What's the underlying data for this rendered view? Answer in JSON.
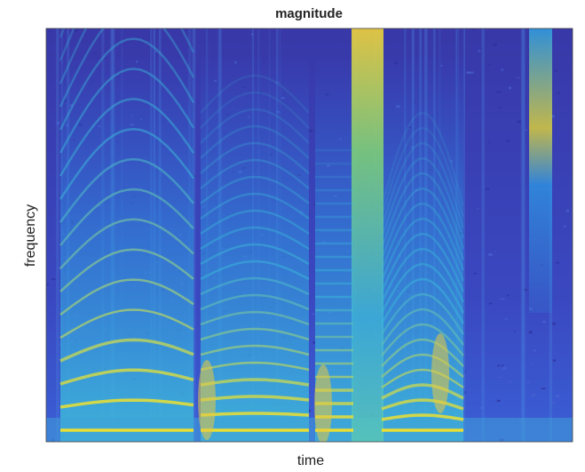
{
  "chart_data": {
    "type": "heatmap",
    "title": "magnitude",
    "xlabel": "time",
    "ylabel": "frequency"
  }
}
